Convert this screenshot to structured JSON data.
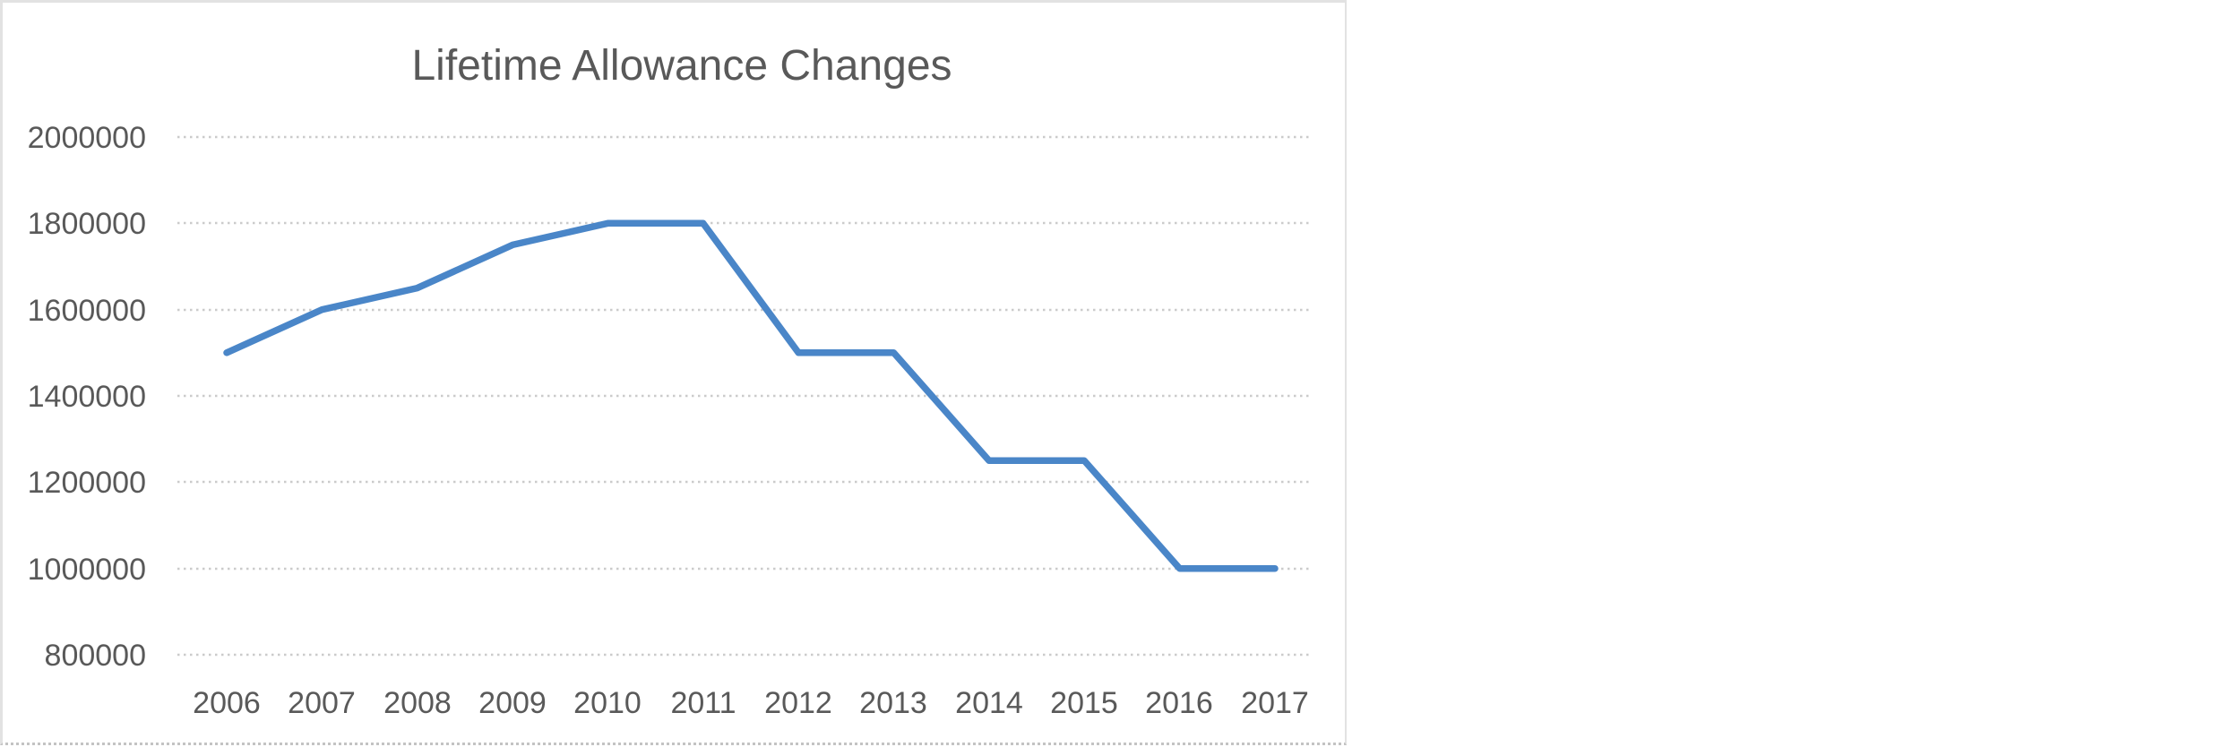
{
  "chart_data": {
    "type": "line",
    "title": "Lifetime Allowance Changes",
    "x": [
      "2006",
      "2007",
      "2008",
      "2009",
      "2010",
      "2011",
      "2012",
      "2013",
      "2014",
      "2015",
      "2016",
      "2017"
    ],
    "values": [
      1500000,
      1600000,
      1650000,
      1750000,
      1800000,
      1800000,
      1500000,
      1500000,
      1250000,
      1250000,
      1000000,
      1000000
    ],
    "yticks": [
      2000000,
      1800000,
      1600000,
      1400000,
      1200000,
      1000000,
      800000
    ],
    "ylim": [
      800000,
      2000000
    ],
    "xlabel": "",
    "ylabel": "",
    "grid": true,
    "legend": false,
    "colors": {
      "line": "#4A86C8",
      "gridline": "#CBCBCB",
      "text": "#595959",
      "border": "#E2E2E2",
      "background": "#FFFFFF"
    }
  }
}
